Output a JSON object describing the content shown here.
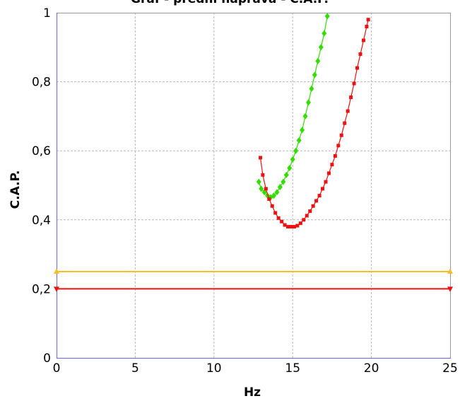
{
  "chart_data": {
    "type": "line",
    "title": "Graf - přední náprava - C.A.P.",
    "xlabel": "Hz",
    "ylabel": "C.A.P.",
    "xlim": [
      0,
      25
    ],
    "ylim": [
      0,
      1
    ],
    "x_ticks": [
      "0",
      "5",
      "10",
      "15",
      "20",
      "25"
    ],
    "y_ticks": [
      "0",
      "0,2",
      "0,4",
      "0,6",
      "0,8",
      "1"
    ],
    "grid": true,
    "series": [
      {
        "color": "#33dd00",
        "marker": "diamond",
        "x": [
          12.85,
          13.0,
          13.2,
          13.4,
          13.6,
          13.8,
          14.0,
          14.2,
          14.4,
          14.6,
          14.8,
          15.0,
          15.2,
          15.4,
          15.6,
          15.8,
          16.0,
          16.2,
          16.4,
          16.6,
          16.8,
          17.0,
          17.2
        ],
        "y": [
          0.51,
          0.49,
          0.48,
          0.47,
          0.465,
          0.47,
          0.48,
          0.495,
          0.51,
          0.53,
          0.55,
          0.575,
          0.6,
          0.63,
          0.66,
          0.7,
          0.74,
          0.78,
          0.82,
          0.86,
          0.9,
          0.94,
          0.99
        ]
      },
      {
        "color": "#ee1111",
        "marker": "square",
        "x": [
          12.95,
          13.1,
          13.3,
          13.5,
          13.7,
          13.9,
          14.1,
          14.3,
          14.5,
          14.7,
          14.9,
          15.1,
          15.3,
          15.5,
          15.7,
          15.9,
          16.1,
          16.3,
          16.5,
          16.7,
          16.9,
          17.1,
          17.3,
          17.5,
          17.7,
          17.9,
          18.1,
          18.3,
          18.5,
          18.7,
          18.9,
          19.1,
          19.3,
          19.5,
          19.7,
          19.8
        ],
        "y": [
          0.58,
          0.53,
          0.49,
          0.46,
          0.44,
          0.42,
          0.405,
          0.395,
          0.385,
          0.38,
          0.38,
          0.38,
          0.383,
          0.39,
          0.4,
          0.412,
          0.425,
          0.44,
          0.455,
          0.47,
          0.49,
          0.51,
          0.535,
          0.56,
          0.585,
          0.615,
          0.645,
          0.68,
          0.715,
          0.755,
          0.795,
          0.84,
          0.88,
          0.92,
          0.96,
          0.98
        ]
      },
      {
        "color": "#ffbb22",
        "marker": "triangle-up",
        "x": [
          0,
          25
        ],
        "y": [
          0.25,
          0.25
        ]
      },
      {
        "color": "#ee1111",
        "marker": "triangle-down",
        "x": [
          0,
          25
        ],
        "y": [
          0.2,
          0.2
        ]
      }
    ]
  }
}
